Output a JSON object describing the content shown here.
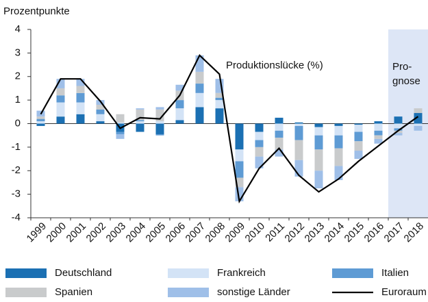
{
  "chart_data": {
    "type": "bar",
    "stacked": true,
    "y_label": "Prozentpunkte",
    "categories": [
      "1999",
      "2000",
      "2001",
      "2002",
      "2003",
      "2004",
      "2005",
      "2006",
      "2007",
      "2008",
      "2009",
      "2010",
      "2011",
      "2012",
      "2013",
      "2014",
      "2015",
      "2016",
      "2017",
      "2018"
    ],
    "series": [
      {
        "name": "Deutschland",
        "color": "#1b70b3",
        "values": [
          -0.1,
          0.3,
          0.4,
          0.1,
          -0.35,
          -0.35,
          -0.45,
          0.15,
          0.7,
          0.65,
          -1.1,
          -0.35,
          0.25,
          0.05,
          -0.15,
          -0.1,
          -0.05,
          0.1,
          0.3,
          0.45
        ]
      },
      {
        "name": "Frankreich",
        "color": "#d3e3f6",
        "values": [
          0.1,
          0.6,
          0.5,
          0.3,
          0.05,
          0.1,
          0.1,
          0.5,
          0.6,
          0.35,
          -0.5,
          -0.35,
          -0.3,
          -0.1,
          -0.35,
          -0.4,
          -0.3,
          -0.3,
          -0.2,
          -0.1
        ]
      },
      {
        "name": "Italien",
        "color": "#5e9bd4",
        "values": [
          0.1,
          0.3,
          0.4,
          0.2,
          -0.1,
          0.05,
          -0.05,
          0.35,
          0.4,
          0.1,
          -0.7,
          -0.3,
          -0.3,
          -0.6,
          -0.6,
          -0.55,
          -0.4,
          -0.2,
          -0.1,
          0.0
        ]
      },
      {
        "name": "Spanien",
        "color": "#c9cbcc",
        "values": [
          0.1,
          0.3,
          0.3,
          0.2,
          0.35,
          0.45,
          0.5,
          0.4,
          0.5,
          0.2,
          -0.4,
          -0.4,
          -0.5,
          -0.85,
          -0.9,
          -0.75,
          -0.4,
          -0.15,
          -0.1,
          0.2
        ]
      },
      {
        "name": "sonstige Länder",
        "color": "#9fbfe8",
        "values": [
          0.25,
          0.4,
          0.3,
          0.2,
          -0.2,
          0.05,
          0.1,
          0.25,
          0.7,
          0.6,
          -0.6,
          -0.5,
          -0.3,
          -0.7,
          -0.75,
          -0.6,
          -0.35,
          -0.2,
          -0.1,
          -0.2
        ]
      },
      {
        "name": "Euroraum",
        "type": "line",
        "color": "#000000",
        "values": [
          0.4,
          1.9,
          1.9,
          0.95,
          -0.2,
          0.25,
          0.2,
          1.2,
          2.9,
          2.1,
          -3.3,
          -1.9,
          -1.05,
          -2.2,
          -2.9,
          -2.35,
          -1.6,
          -0.95,
          -0.3,
          0.3
        ]
      }
    ],
    "line_annotation": "Produktionslücke (%)",
    "forecast_categories": [
      "2017",
      "2018"
    ],
    "forecast_label": [
      "Pro-",
      "gnose"
    ],
    "forecast_color": "#dde6f6",
    "ylim": [
      -4,
      4
    ],
    "yticks": [
      -4,
      -3,
      -2,
      -1,
      0,
      1,
      2,
      3,
      4
    ],
    "grid": false
  }
}
